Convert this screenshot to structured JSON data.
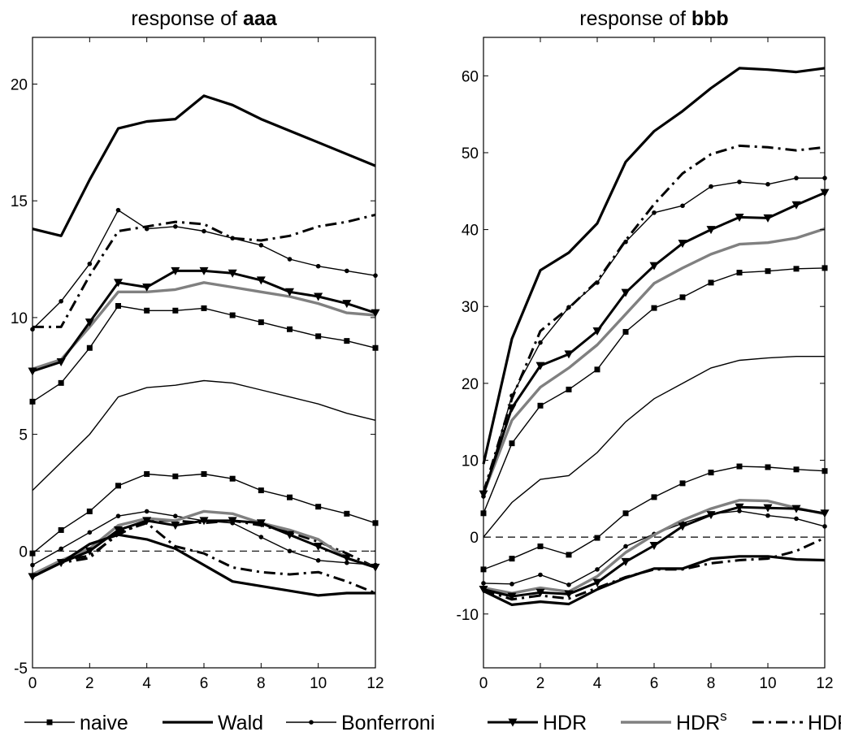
{
  "chart_data": [
    {
      "type": "line",
      "title_prefix": "response of ",
      "title_bold": "aaa",
      "xlim": [
        0,
        12
      ],
      "ylim": [
        -5,
        22
      ],
      "xticks": [
        0,
        2,
        4,
        6,
        8,
        10,
        12
      ],
      "yticks": [
        -5,
        0,
        5,
        10,
        15,
        20
      ],
      "x": [
        0,
        1,
        2,
        3,
        4,
        5,
        6,
        7,
        8,
        9,
        10,
        11,
        12
      ],
      "zero_line": true,
      "center": [
        2.6,
        3.8,
        5.0,
        6.6,
        7.0,
        7.1,
        7.3,
        7.2,
        6.9,
        6.6,
        6.3,
        5.9,
        5.6
      ],
      "series": [
        {
          "key": "naive",
          "upper": [
            6.4,
            7.2,
            8.7,
            10.5,
            10.3,
            10.3,
            10.4,
            10.1,
            9.8,
            9.5,
            9.2,
            9.0,
            8.7
          ],
          "lower": [
            -0.1,
            0.9,
            1.7,
            2.8,
            3.3,
            3.2,
            3.3,
            3.1,
            2.6,
            2.3,
            1.9,
            1.6,
            1.2
          ]
        },
        {
          "key": "wald",
          "upper": [
            13.8,
            13.5,
            15.9,
            18.1,
            18.4,
            18.5,
            19.5,
            19.1,
            18.5,
            18.0,
            17.5,
            17.0,
            16.5
          ],
          "lower": [
            -1.1,
            -0.5,
            0.3,
            0.7,
            0.5,
            0.1,
            -0.6,
            -1.3,
            -1.5,
            -1.7,
            -1.9,
            -1.8,
            -1.8
          ]
        },
        {
          "key": "bonferroni",
          "upper": [
            9.5,
            10.7,
            12.3,
            14.6,
            13.8,
            13.9,
            13.7,
            13.4,
            13.1,
            12.5,
            12.2,
            12.0,
            11.8
          ],
          "lower": [
            -0.6,
            0.1,
            0.8,
            1.5,
            1.7,
            1.5,
            1.3,
            1.2,
            0.6,
            0.0,
            -0.4,
            -0.5,
            -0.6
          ]
        },
        {
          "key": "hdr",
          "upper": [
            7.7,
            8.1,
            9.8,
            11.5,
            11.3,
            12.0,
            12.0,
            11.9,
            11.6,
            11.1,
            10.9,
            10.6,
            10.2
          ],
          "lower": [
            -1.1,
            -0.5,
            0.0,
            0.9,
            1.3,
            1.1,
            1.3,
            1.3,
            1.2,
            0.7,
            0.2,
            -0.3,
            -0.7
          ]
        },
        {
          "key": "hdr_s",
          "upper": [
            7.8,
            8.2,
            9.6,
            11.1,
            11.1,
            11.2,
            11.5,
            11.3,
            11.1,
            10.9,
            10.6,
            10.2,
            10.1
          ],
          "lower": [
            -1.0,
            -0.4,
            0.1,
            1.1,
            1.4,
            1.3,
            1.7,
            1.6,
            1.2,
            0.9,
            0.5,
            -0.3,
            -0.7
          ]
        },
        {
          "key": "hdr_w",
          "upper": [
            9.6,
            9.6,
            11.8,
            13.7,
            13.9,
            14.1,
            14.0,
            13.4,
            13.3,
            13.5,
            13.9,
            14.1,
            14.4
          ],
          "lower": [
            -1.1,
            -0.4,
            -0.2,
            0.7,
            1.3,
            1.3,
            1.2,
            1.3,
            1.1,
            0.8,
            0.4,
            -0.1,
            -0.7
          ],
          "lower_alt": [
            -1.1,
            -0.5,
            -0.3,
            0.8,
            1.2,
            0.2,
            -0.1,
            -0.7,
            -0.9,
            -1.0,
            -0.9,
            -1.3,
            -1.8
          ]
        }
      ]
    },
    {
      "type": "line",
      "title_prefix": "response of ",
      "title_bold": "bbb",
      "xlim": [
        0,
        12
      ],
      "ylim": [
        -17,
        65
      ],
      "xticks": [
        0,
        2,
        4,
        6,
        8,
        10,
        12
      ],
      "yticks": [
        -10,
        0,
        10,
        20,
        30,
        40,
        50,
        60
      ],
      "x": [
        0,
        1,
        2,
        3,
        4,
        5,
        6,
        7,
        8,
        9,
        10,
        11,
        12
      ],
      "zero_line": true,
      "center": [
        0.0,
        4.5,
        7.5,
        8.0,
        11.0,
        15.0,
        18.0,
        20.0,
        22.0,
        23.0,
        23.3,
        23.5,
        23.5
      ],
      "series": [
        {
          "key": "naive",
          "upper": [
            3.1,
            12.2,
            17.1,
            19.2,
            21.8,
            26.7,
            29.8,
            31.2,
            33.1,
            34.4,
            34.6,
            34.9,
            35.0
          ],
          "lower": [
            -4.2,
            -2.8,
            -1.2,
            -2.3,
            -0.1,
            3.1,
            5.2,
            7.0,
            8.4,
            9.2,
            9.1,
            8.8,
            8.6
          ]
        },
        {
          "key": "wald",
          "upper": [
            9.5,
            25.8,
            34.7,
            37.0,
            40.8,
            48.8,
            52.8,
            55.4,
            58.4,
            61.0,
            60.8,
            60.5,
            61.0
          ],
          "lower": [
            -7.0,
            -8.8,
            -8.4,
            -8.7,
            -6.8,
            -5.3,
            -4.1,
            -4.1,
            -2.8,
            -2.5,
            -2.5,
            -2.9,
            -3.0
          ]
        },
        {
          "key": "bonferroni",
          "upper": [
            5.3,
            18.4,
            25.3,
            29.9,
            33.1,
            38.4,
            42.2,
            43.1,
            45.6,
            46.2,
            45.9,
            46.7,
            46.7
          ],
          "lower": [
            -6.0,
            -6.1,
            -4.9,
            -6.2,
            -4.2,
            -1.2,
            0.4,
            1.8,
            3.0,
            3.4,
            2.8,
            2.4,
            1.4
          ]
        },
        {
          "key": "hdr",
          "upper": [
            5.6,
            16.8,
            22.3,
            23.8,
            26.8,
            31.8,
            35.3,
            38.2,
            40.0,
            41.6,
            41.5,
            43.2,
            44.8
          ],
          "lower": [
            -6.8,
            -7.7,
            -7.2,
            -7.4,
            -5.9,
            -3.2,
            -1.1,
            1.4,
            2.9,
            3.9,
            3.8,
            3.7,
            3.1
          ]
        },
        {
          "key": "hdr_s",
          "upper": [
            5.7,
            15.2,
            19.5,
            22.0,
            25.0,
            29.0,
            33.0,
            35.0,
            36.8,
            38.1,
            38.3,
            38.9,
            40.1
          ],
          "lower": [
            -6.6,
            -7.3,
            -6.6,
            -7.1,
            -5.1,
            -2.0,
            0.3,
            2.2,
            3.7,
            4.8,
            4.7,
            3.8,
            3.0
          ]
        },
        {
          "key": "hdr_w",
          "upper": [
            5.8,
            18.0,
            26.8,
            29.8,
            33.3,
            38.6,
            43.3,
            47.3,
            49.8,
            50.9,
            50.7,
            50.3,
            50.7
          ],
          "lower": [
            -6.9,
            -8.1,
            -7.6,
            -8.0,
            -6.6,
            -5.2,
            -4.2,
            -4.2,
            -3.4,
            -3.0,
            -2.8,
            -1.8,
            -0.1
          ]
        }
      ]
    }
  ],
  "legend": [
    {
      "key": "naive",
      "label": "naive",
      "sup": ""
    },
    {
      "key": "wald",
      "label": "Wald",
      "sup": ""
    },
    {
      "key": "bonferroni",
      "label": "Bonferroni",
      "sup": ""
    },
    {
      "key": "hdr",
      "label": "HDR",
      "sup": ""
    },
    {
      "key": "hdr_s",
      "label": "HDR",
      "sup": "s"
    },
    {
      "key": "hdr_w",
      "label": "HDR",
      "sup": "w"
    }
  ],
  "series_styles": {
    "naive": {
      "color": "#000000",
      "marker": "square",
      "dash": "solid"
    },
    "wald": {
      "color": "#000000",
      "marker": "none",
      "dash": "solid"
    },
    "bonferroni": {
      "color": "#000000",
      "marker": "dot",
      "dash": "solid"
    },
    "hdr": {
      "color": "#000000",
      "marker": "triangle-down",
      "dash": "solid"
    },
    "hdr_s": {
      "color": "#808080",
      "marker": "none",
      "dash": "solid"
    },
    "hdr_w": {
      "color": "#000000",
      "marker": "none",
      "dash": "dash-dot"
    }
  }
}
